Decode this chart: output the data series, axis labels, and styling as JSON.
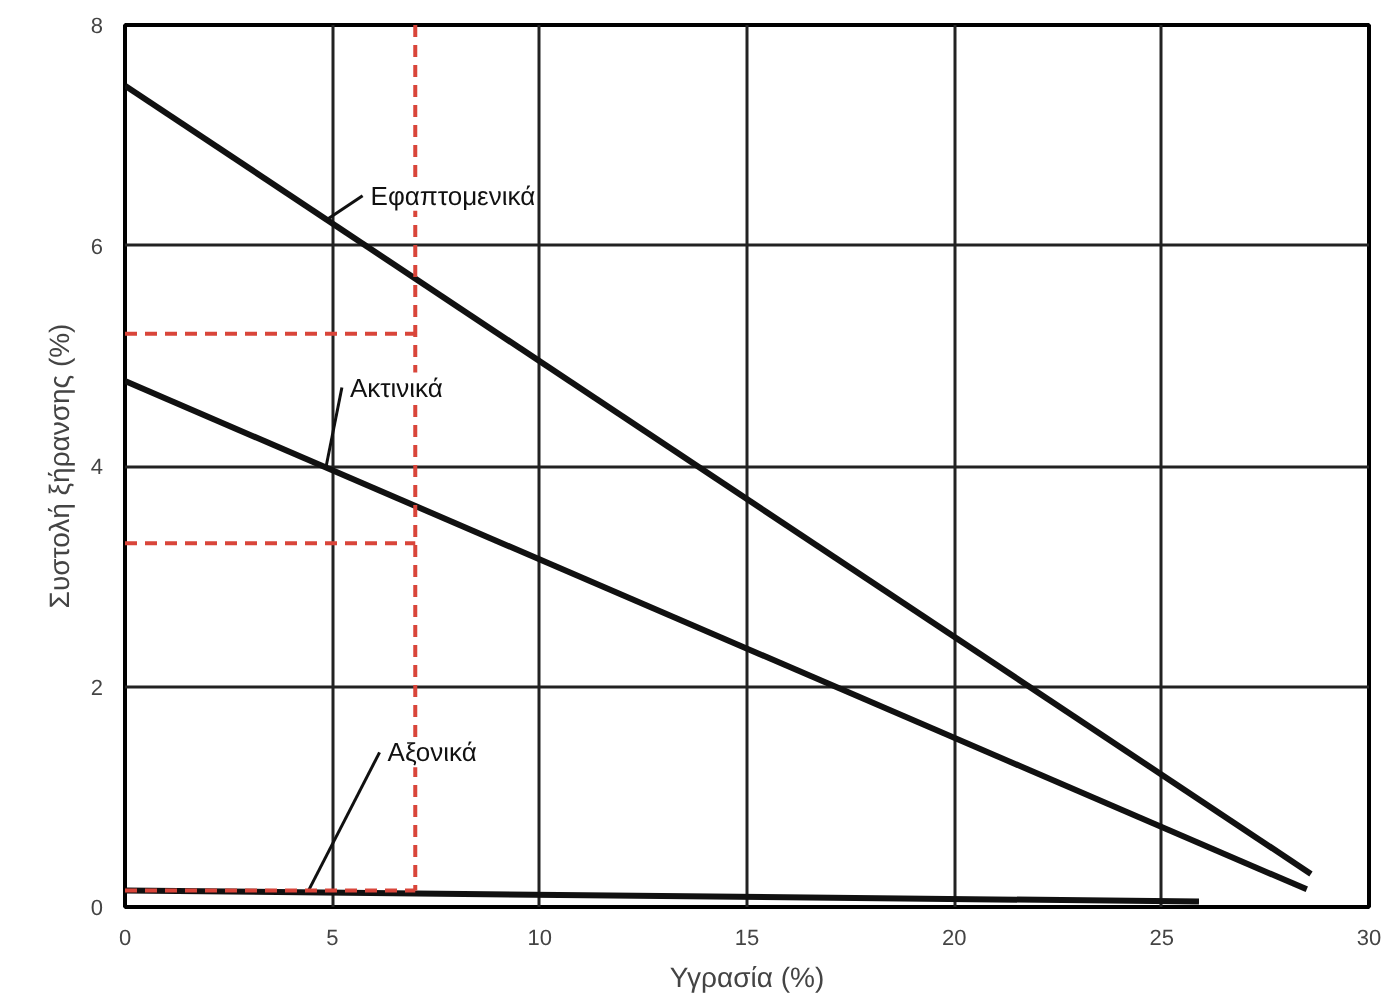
{
  "chart_data": {
    "type": "line",
    "xlabel": "Υγρασία (%)",
    "ylabel": "Συστολή ξήρανσης (%)",
    "xlim": [
      0,
      30
    ],
    "ylim": [
      0,
      8
    ],
    "xticks": [
      0,
      5,
      10,
      15,
      20,
      25,
      30
    ],
    "yticks": [
      0,
      2,
      4,
      6,
      8
    ],
    "grid": true,
    "marker": "none",
    "series": [
      {
        "name": "Εφαπτομενικά",
        "color": "#111111",
        "x": [
          0,
          28.6
        ],
        "values": [
          7.45,
          0.3
        ]
      },
      {
        "name": "Ακτινικά",
        "color": "#111111",
        "x": [
          0,
          28.5
        ],
        "values": [
          4.77,
          0.16
        ]
      },
      {
        "name": "Αξονικά",
        "color": "#111111",
        "x": [
          0,
          25.9
        ],
        "values": [
          0.15,
          0.05
        ]
      },
      {
        "color": "#d9453a",
        "line_style": "dashed",
        "x": [
          7,
          7
        ],
        "values": [
          8,
          0.15
        ]
      },
      {
        "color": "#d9453a",
        "line_style": "dashed",
        "x": [
          0,
          7
        ],
        "values": [
          5.2,
          5.2
        ]
      },
      {
        "color": "#d9453a",
        "line_style": "dashed",
        "x": [
          0,
          7
        ],
        "values": [
          3.3,
          3.3
        ]
      },
      {
        "color": "#d9453a",
        "line_style": "dashed",
        "x": [
          0,
          7
        ],
        "values": [
          0.15,
          0.15
        ]
      }
    ]
  }
}
